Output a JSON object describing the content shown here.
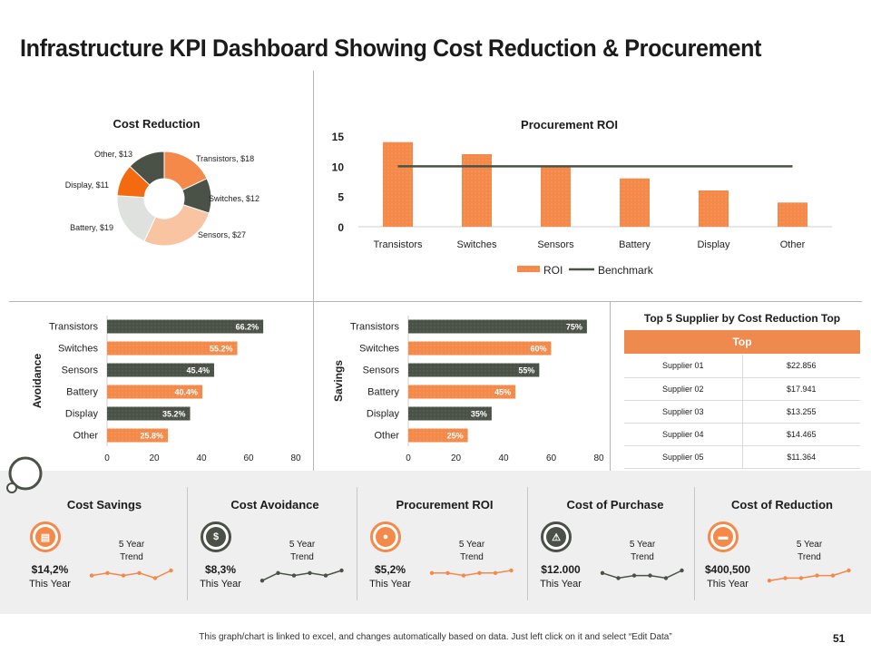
{
  "title": "Infrastructure KPI Dashboard Showing Cost Reduction & Procurement",
  "colors": {
    "orange": "#f4894a",
    "dark": "#4a5147",
    "light_orange": "#f9c4a2",
    "light_gray": "#dfe1de",
    "bright_orange": "#f36a10"
  },
  "chart_data": [
    {
      "type": "pie",
      "title": "Cost Reduction",
      "labels": [
        "Transistors, $18",
        "Switches, $12",
        "Sensors, $27",
        "Battery, $19",
        "Display, $11",
        "Other, $13"
      ],
      "categories": [
        "Transistors",
        "Switches",
        "Sensors",
        "Battery",
        "Display",
        "Other"
      ],
      "values": [
        18,
        12,
        27,
        19,
        11,
        13
      ]
    },
    {
      "type": "bar",
      "title": "Procurement ROI",
      "categories": [
        "Transistors",
        "Switches",
        "Sensors",
        "Battery",
        "Display",
        "Other"
      ],
      "series": [
        {
          "name": "ROI",
          "values": [
            14,
            12,
            10,
            8,
            6,
            4
          ]
        },
        {
          "name": "Benchmark",
          "values": [
            10,
            10,
            10,
            10,
            10,
            10
          ]
        }
      ],
      "ylim": [
        0,
        15
      ],
      "yticks": [
        "0",
        "5",
        "10",
        "15"
      ],
      "legend": "bottom"
    },
    {
      "type": "bar",
      "orientation": "horizontal",
      "ylabel": "Avoidance",
      "categories": [
        "Transistors",
        "Switches",
        "Sensors",
        "Battery",
        "Display",
        "Other"
      ],
      "values": [
        66.2,
        55.2,
        45.4,
        40.4,
        35.2,
        25.8
      ],
      "data_labels": [
        "66.2%",
        "55.2%",
        "45.4%",
        "40.4%",
        "35.2%",
        "25.8%"
      ],
      "xlim": [
        0,
        80
      ],
      "xticks": [
        "0",
        "20",
        "40",
        "60",
        "80"
      ]
    },
    {
      "type": "bar",
      "orientation": "horizontal",
      "ylabel": "Savings",
      "categories": [
        "Transistors",
        "Switches",
        "Sensors",
        "Battery",
        "Display",
        "Other"
      ],
      "values": [
        75,
        60,
        55,
        45,
        35,
        25
      ],
      "data_labels": [
        "75%",
        "60%",
        "55%",
        "45%",
        "35%",
        "25%"
      ],
      "xlim": [
        0,
        80
      ],
      "xticks": [
        "0",
        "20",
        "40",
        "60",
        "80"
      ]
    },
    {
      "type": "table",
      "title": "Top 5 Supplier by Cost Reduction Top",
      "header": "Top",
      "rows": [
        [
          "Supplier 01",
          "$22.856"
        ],
        [
          "Supplier 02",
          "$17.941"
        ],
        [
          "Supplier 03",
          "$13.255"
        ],
        [
          "Supplier 04",
          "$14.465"
        ],
        [
          "Supplier 05",
          "$11.364"
        ]
      ]
    }
  ],
  "kpis": [
    {
      "title": "Cost Savings",
      "value": "$14,2%",
      "sub": "This Year",
      "trend_label_1": "5 Year",
      "trend_label_2": "Trend",
      "icon": "basket-icon",
      "theme": "orange",
      "spark": [
        3,
        4,
        3,
        4,
        2,
        5
      ]
    },
    {
      "title": "Cost Avoidance",
      "value": "$8,3%",
      "sub": "This Year",
      "trend_label_1": "5 Year",
      "trend_label_2": "Trend",
      "icon": "money-bag-icon",
      "theme": "dark",
      "spark": [
        1,
        4,
        3,
        4,
        3,
        5
      ]
    },
    {
      "title": "Procurement ROI",
      "value": "$5,2%",
      "sub": "This Year",
      "trend_label_1": "5 Year",
      "trend_label_2": "Trend",
      "icon": "piggy-bank-icon",
      "theme": "orange",
      "spark": [
        4,
        4,
        3,
        4,
        4,
        5
      ]
    },
    {
      "title": "Cost of Purchase",
      "value": "$12.000",
      "sub": "This Year",
      "trend_label_1": "5 Year",
      "trend_label_2": "Trend",
      "icon": "warning-icon",
      "theme": "dark",
      "spark": [
        4,
        2,
        3,
        3,
        2,
        5
      ]
    },
    {
      "title": "Cost of Reduction",
      "value": "$400,500",
      "sub": "This Year",
      "trend_label_1": "5 Year",
      "trend_label_2": "Trend",
      "icon": "register-icon",
      "theme": "orange",
      "spark": [
        1,
        2,
        2,
        3,
        3,
        5
      ]
    }
  ],
  "footer": "This graph/chart is linked to excel, and changes automatically based on data. Just left click on it and select “Edit Data”",
  "page_number": "51"
}
